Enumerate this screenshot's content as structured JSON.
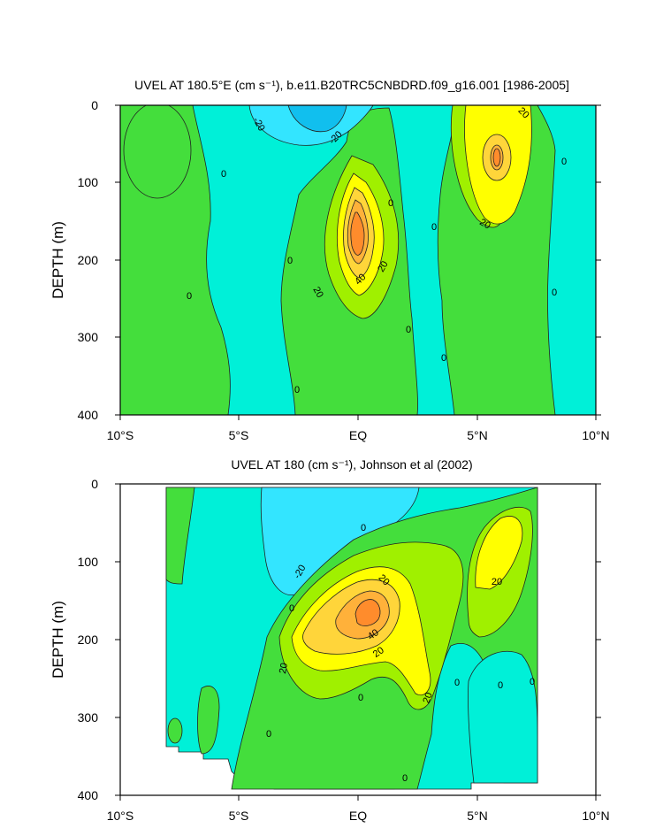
{
  "chart_data": [
    {
      "type": "heatmap",
      "title": "UVEL AT 180.5°E (cm s⁻¹), b.e11.B20TRC5CNBDRD.f09_g16.001 [1986-2005]",
      "xlabel": "",
      "ylabel": "DEPTH (m)",
      "xlim": [
        -10,
        10
      ],
      "ylim": [
        400,
        0
      ],
      "x_ticks": [
        "10°S",
        "5°S",
        "EQ",
        "5°N",
        "10°N"
      ],
      "y_ticks": [
        "0",
        "100",
        "200",
        "300",
        "400"
      ],
      "contour_interval": 10,
      "contour_labels": [
        "-20",
        "-20",
        "0",
        "0",
        "0",
        "0",
        "0",
        "0",
        "0",
        "0",
        "0",
        "0",
        "20",
        "20",
        "20",
        "40",
        "20",
        "20"
      ],
      "features": [
        {
          "x": -0.1,
          "depth": 175,
          "max": 55
        },
        {
          "x": 6.1,
          "depth": 65,
          "max": 35
        },
        {
          "x": -1.5,
          "depth": 20,
          "min": -35
        },
        {
          "x": -8.8,
          "depth": 60,
          "max": 5
        }
      ]
    },
    {
      "type": "heatmap",
      "title": "UVEL AT 180 (cm s⁻¹), Johnson et al (2002)",
      "xlabel": "",
      "ylabel": "DEPTH (m)",
      "xlim": [
        -10,
        10
      ],
      "ylim": [
        400,
        0
      ],
      "x_ticks": [
        "10°S",
        "5°S",
        "EQ",
        "5°N",
        "10°N"
      ],
      "y_ticks": [
        "0",
        "100",
        "200",
        "300",
        "400"
      ],
      "contour_interval": 10,
      "contour_labels": [
        "0",
        "0",
        "0",
        "0",
        "0",
        "0",
        "0",
        "0",
        "-20",
        "20",
        "20",
        "20",
        "40",
        "20",
        "20",
        "20",
        "20"
      ],
      "data_extent_x": [
        -8,
        8
      ],
      "features": [
        {
          "x": 0.6,
          "depth": 165,
          "max": 55
        },
        {
          "x": 6.2,
          "depth": 90,
          "max": 25
        },
        {
          "x": -1.5,
          "depth": 40,
          "min": -25
        }
      ]
    }
  ],
  "legend_colors": {
    "lt_neg30": "#11bfee",
    "neg30_neg20": "#33e5ff",
    "neg20_0": "#00f0d8",
    "0_10": "#44de3c",
    "10_20": "#a0f000",
    "20_30": "#ffff00",
    "30_40": "#ffd53a",
    "40_50": "#ffb13a",
    "gt_50": "#ff8c2c"
  }
}
